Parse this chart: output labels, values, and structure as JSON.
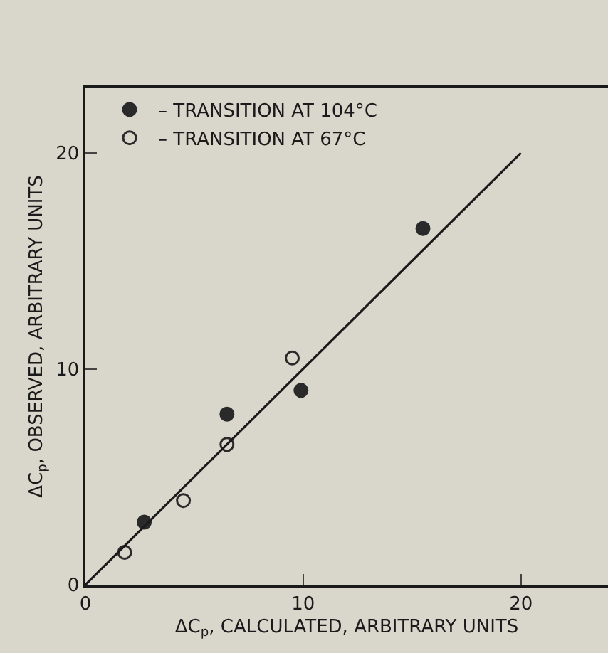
{
  "chart_data": {
    "type": "scatter",
    "xlabel": "ΔC$_{p}$, CALCULATED, ARBITRARY UNITS",
    "ylabel": "ΔC$_{p}$, OBSERVED, ARBITRARY UNITS",
    "series": [
      {
        "name": "– TRANSITION AT 104°C",
        "color": "#2a2a2a",
        "marker": "circle",
        "x": [
          2.7,
          6.5,
          9.9,
          15.5
        ],
        "values": [
          2.9,
          7.9,
          9,
          16.5
        ]
      },
      {
        "name": "– TRANSITION AT 67°C",
        "color": "#2a2a2a",
        "marker": "circle-open",
        "x": [
          1.8,
          4.5,
          6.5,
          9.5
        ],
        "values": [
          1.5,
          3.9,
          6.5,
          10.5
        ]
      },
      {
        "type": "line",
        "color": "#1a1a1a",
        "x": [
          0,
          20
        ],
        "values": [
          0,
          20
        ]
      }
    ],
    "xlim": [
      0,
      24
    ],
    "ylim": [
      0,
      23
    ],
    "xticks": [
      0,
      10,
      20
    ],
    "yticks": [
      0,
      10,
      20
    ],
    "grid": false,
    "legend": "top left",
    "line_style": "solid"
  }
}
